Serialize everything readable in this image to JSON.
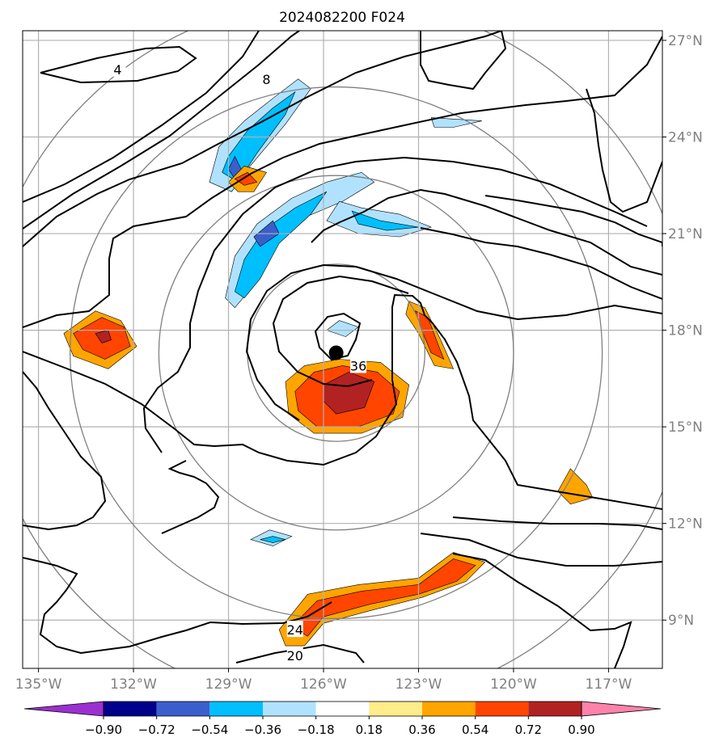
{
  "title": "2024082200 F024",
  "colors": {
    "gray_text": "#808080",
    "contour": "#000000",
    "grid": "#b0b0b0",
    "ring": "#808080",
    "center_marker": "#000000"
  },
  "chart_data": {
    "type": "heatmap",
    "title": "2024082200 F024",
    "xlabel": "",
    "ylabel": "",
    "x_unit": "degrees longitude",
    "y_unit": "degrees latitude",
    "xlim": [
      -135.5,
      -115.3
    ],
    "ylim": [
      7.5,
      27.3
    ],
    "x_ticks": [
      -135,
      -132,
      -129,
      -126,
      -123,
      -120,
      -117
    ],
    "x_tick_labels": [
      "135°W",
      "132°W",
      "129°W",
      "126°W",
      "123°W",
      "120°W",
      "117°W"
    ],
    "y_ticks": [
      9,
      12,
      15,
      18,
      21,
      24,
      27
    ],
    "y_tick_labels": [
      "9°N",
      "12°N",
      "15°N",
      "18°N",
      "21°N",
      "24°N",
      "27°N"
    ],
    "grid": true,
    "storm_center": {
      "lon": -125.6,
      "lat": 17.3
    },
    "range_rings_deg": [
      2.8,
      5.6,
      8.4,
      11.2
    ],
    "contour_labels": [
      {
        "text": "4",
        "lon": -132.5,
        "lat": 26.1
      },
      {
        "text": "8",
        "lon": -127.8,
        "lat": 25.8
      },
      {
        "text": "36",
        "lon": -124.9,
        "lat": 16.9
      },
      {
        "text": "24",
        "lon": -126.9,
        "lat": 8.7
      },
      {
        "text": "20",
        "lon": -126.9,
        "lat": 7.9
      }
    ],
    "shaded_regions": [
      {
        "name": "nw-band-north",
        "level_index": 4,
        "polygon": [
          [
            -129.3,
            23.7
          ],
          [
            -128.5,
            24.5
          ],
          [
            -127.6,
            25.2
          ],
          [
            -126.8,
            25.8
          ],
          [
            -126.4,
            25.5
          ],
          [
            -127.2,
            24.4
          ],
          [
            -128.4,
            23.0
          ],
          [
            -128.9,
            22.3
          ],
          [
            -129.6,
            22.6
          ]
        ]
      },
      {
        "name": "nw-band-north-core",
        "level_index": 3,
        "polygon": [
          [
            -129.0,
            23.4
          ],
          [
            -128.4,
            24.2
          ],
          [
            -127.6,
            24.9
          ],
          [
            -126.9,
            25.4
          ],
          [
            -127.2,
            24.7
          ],
          [
            -128.1,
            23.5
          ],
          [
            -128.7,
            22.6
          ],
          [
            -129.2,
            22.9
          ]
        ]
      },
      {
        "name": "nw-band-north-dot",
        "level_index": 2,
        "polygon": [
          [
            -129.0,
            23.0
          ],
          [
            -128.8,
            23.4
          ],
          [
            -128.6,
            23.0
          ],
          [
            -128.8,
            22.7
          ]
        ]
      },
      {
        "name": "nw-band-south",
        "level_index": 4,
        "polygon": [
          [
            -129.1,
            19.0
          ],
          [
            -128.8,
            20.3
          ],
          [
            -128.1,
            21.3
          ],
          [
            -127.0,
            22.1
          ],
          [
            -125.9,
            22.6
          ],
          [
            -124.8,
            22.9
          ],
          [
            -124.4,
            22.6
          ],
          [
            -125.4,
            22.0
          ],
          [
            -126.6,
            21.5
          ],
          [
            -127.6,
            20.6
          ],
          [
            -128.2,
            19.4
          ],
          [
            -128.8,
            18.7
          ]
        ]
      },
      {
        "name": "nw-band-south-core",
        "level_index": 3,
        "polygon": [
          [
            -128.8,
            19.2
          ],
          [
            -128.5,
            20.2
          ],
          [
            -127.9,
            21.1
          ],
          [
            -126.9,
            21.8
          ],
          [
            -125.9,
            22.3
          ],
          [
            -126.4,
            21.6
          ],
          [
            -127.4,
            20.7
          ],
          [
            -128.0,
            19.6
          ],
          [
            -128.5,
            19.0
          ]
        ]
      },
      {
        "name": "nw-band-purple",
        "level_index": 2,
        "polygon": [
          [
            -128.2,
            20.9
          ],
          [
            -127.6,
            21.4
          ],
          [
            -127.4,
            21.0
          ],
          [
            -128.0,
            20.6
          ]
        ]
      },
      {
        "name": "central-blue-arc",
        "level_index": 4,
        "polygon": [
          [
            -125.5,
            22.0
          ],
          [
            -124.8,
            21.8
          ],
          [
            -123.6,
            21.6
          ],
          [
            -122.6,
            21.2
          ],
          [
            -123.6,
            20.9
          ],
          [
            -124.9,
            21.0
          ],
          [
            -125.9,
            21.4
          ]
        ]
      },
      {
        "name": "central-blue-arc-core",
        "level_index": 3,
        "polygon": [
          [
            -125.1,
            21.7
          ],
          [
            -124.2,
            21.4
          ],
          [
            -123.0,
            21.2
          ],
          [
            -124.0,
            21.1
          ],
          [
            -124.9,
            21.3
          ]
        ]
      },
      {
        "name": "nw-orange-patch",
        "level_index": 7,
        "polygon": [
          [
            -129.0,
            22.6
          ],
          [
            -128.5,
            23.1
          ],
          [
            -127.8,
            22.9
          ],
          [
            -128.2,
            22.3
          ],
          [
            -128.7,
            22.3
          ]
        ]
      },
      {
        "name": "nw-orange-patch-core",
        "level_index": 8,
        "polygon": [
          [
            -128.8,
            22.7
          ],
          [
            -128.4,
            22.9
          ],
          [
            -128.1,
            22.6
          ],
          [
            -128.5,
            22.5
          ]
        ]
      },
      {
        "name": "eyewall-south",
        "level_index": 7,
        "polygon": [
          [
            -127.2,
            16.4
          ],
          [
            -126.6,
            16.9
          ],
          [
            -125.5,
            17.1
          ],
          [
            -124.2,
            17.0
          ],
          [
            -123.3,
            16.3
          ],
          [
            -123.5,
            15.3
          ],
          [
            -124.8,
            14.8
          ],
          [
            -126.3,
            14.8
          ],
          [
            -127.1,
            15.4
          ]
        ]
      },
      {
        "name": "eyewall-south-core",
        "level_index": 8,
        "polygon": [
          [
            -126.9,
            16.1
          ],
          [
            -126.3,
            16.7
          ],
          [
            -125.4,
            16.9
          ],
          [
            -124.3,
            16.7
          ],
          [
            -123.6,
            16.1
          ],
          [
            -123.8,
            15.4
          ],
          [
            -124.9,
            15.0
          ],
          [
            -126.2,
            15.0
          ],
          [
            -126.8,
            15.5
          ]
        ]
      },
      {
        "name": "eyewall-south-red",
        "level_index": 9,
        "polygon": [
          [
            -126.0,
            16.3
          ],
          [
            -125.2,
            16.7
          ],
          [
            -124.4,
            16.4
          ],
          [
            -124.7,
            15.6
          ],
          [
            -125.6,
            15.4
          ],
          [
            -126.0,
            15.8
          ]
        ]
      },
      {
        "name": "eye-blue",
        "level_index": 4,
        "polygon": [
          [
            -125.9,
            18.0
          ],
          [
            -125.5,
            18.3
          ],
          [
            -124.9,
            18.1
          ],
          [
            -125.3,
            17.8
          ]
        ]
      },
      {
        "name": "east-orange",
        "level_index": 7,
        "polygon": [
          [
            -123.3,
            18.9
          ],
          [
            -122.8,
            18.7
          ],
          [
            -122.3,
            17.7
          ],
          [
            -121.9,
            16.8
          ],
          [
            -122.5,
            16.9
          ],
          [
            -123.0,
            17.9
          ],
          [
            -123.4,
            18.5
          ]
        ]
      },
      {
        "name": "east-orange-core",
        "level_index": 8,
        "polygon": [
          [
            -123.1,
            18.6
          ],
          [
            -122.7,
            18.4
          ],
          [
            -122.4,
            17.6
          ],
          [
            -122.2,
            17.1
          ],
          [
            -122.6,
            17.3
          ],
          [
            -122.9,
            18.0
          ]
        ]
      },
      {
        "name": "west-orange",
        "level_index": 7,
        "polygon": [
          [
            -134.2,
            17.9
          ],
          [
            -133.2,
            18.6
          ],
          [
            -132.4,
            18.3
          ],
          [
            -131.9,
            17.5
          ],
          [
            -132.8,
            16.8
          ],
          [
            -133.9,
            17.2
          ]
        ]
      },
      {
        "name": "west-orange-core",
        "level_index": 8,
        "polygon": [
          [
            -133.9,
            17.9
          ],
          [
            -133.0,
            18.4
          ],
          [
            -132.3,
            18.1
          ],
          [
            -132.1,
            17.5
          ],
          [
            -132.9,
            17.1
          ],
          [
            -133.6,
            17.4
          ]
        ]
      },
      {
        "name": "west-orange-red",
        "level_index": 9,
        "polygon": [
          [
            -133.2,
            17.9
          ],
          [
            -132.8,
            18.0
          ],
          [
            -132.7,
            17.7
          ],
          [
            -133.0,
            17.6
          ]
        ]
      },
      {
        "name": "south-orange-band",
        "level_index": 7,
        "polygon": [
          [
            -127.4,
            8.7
          ],
          [
            -126.5,
            9.8
          ],
          [
            -124.9,
            10.1
          ],
          [
            -123.0,
            10.3
          ],
          [
            -121.9,
            11.1
          ],
          [
            -120.9,
            10.8
          ],
          [
            -121.5,
            10.2
          ],
          [
            -122.9,
            9.7
          ],
          [
            -124.5,
            9.3
          ],
          [
            -126.0,
            8.9
          ],
          [
            -126.6,
            8.2
          ],
          [
            -127.2,
            8.2
          ]
        ]
      },
      {
        "name": "south-orange-band-core",
        "level_index": 8,
        "polygon": [
          [
            -127.0,
            8.8
          ],
          [
            -126.2,
            9.6
          ],
          [
            -124.8,
            9.9
          ],
          [
            -123.0,
            10.1
          ],
          [
            -121.9,
            10.9
          ],
          [
            -121.2,
            10.7
          ],
          [
            -121.8,
            10.2
          ],
          [
            -123.0,
            9.8
          ],
          [
            -124.5,
            9.5
          ],
          [
            -126.0,
            9.1
          ],
          [
            -126.5,
            8.5
          ]
        ]
      },
      {
        "name": "south-blue-oval",
        "level_index": 4,
        "polygon": [
          [
            -128.3,
            11.5
          ],
          [
            -127.7,
            11.8
          ],
          [
            -127.0,
            11.6
          ],
          [
            -127.6,
            11.3
          ]
        ]
      },
      {
        "name": "south-blue-oval-core",
        "level_index": 3,
        "polygon": [
          [
            -128.0,
            11.5
          ],
          [
            -127.6,
            11.6
          ],
          [
            -127.2,
            11.5
          ],
          [
            -127.6,
            11.4
          ]
        ]
      },
      {
        "name": "east-blue-patch",
        "level_index": 4,
        "polygon": [
          [
            -122.6,
            24.6
          ],
          [
            -121.0,
            24.5
          ],
          [
            -121.9,
            24.3
          ],
          [
            -122.5,
            24.3
          ]
        ]
      },
      {
        "name": "east-orange-small",
        "level_index": 7,
        "polygon": [
          [
            -118.2,
            13.7
          ],
          [
            -117.7,
            13.2
          ],
          [
            -117.5,
            12.8
          ],
          [
            -118.2,
            12.6
          ],
          [
            -118.6,
            13.0
          ]
        ]
      }
    ]
  },
  "colorbar": {
    "tick_labels": [
      "−0.90",
      "−0.72",
      "−0.54",
      "−0.36",
      "−0.18",
      "0.18",
      "0.36",
      "0.54",
      "0.72",
      "0.90"
    ],
    "bounds": [
      -0.9,
      -0.72,
      -0.54,
      -0.36,
      -0.18,
      0.18,
      0.36,
      0.54,
      0.72,
      0.9
    ],
    "colors": [
      "#9b30d0",
      "#00008b",
      "#3a5fcd",
      "#00bfff",
      "#b0e2ff",
      "#ffffff",
      "#ffec8b",
      "#ffa500",
      "#ff4500",
      "#b22222",
      "#ff82ab"
    ]
  }
}
